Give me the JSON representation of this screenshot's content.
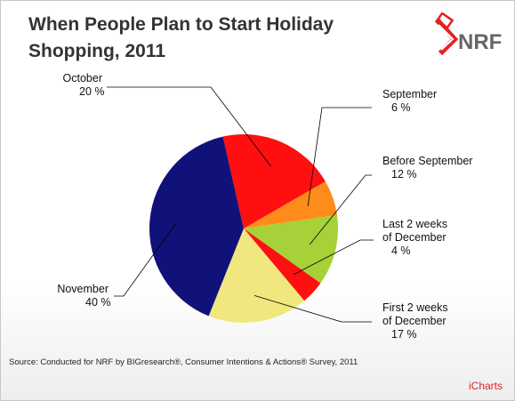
{
  "title": "When People Plan to Start Holiday Shopping, 2011",
  "logo_text": "NRF",
  "source": "Source: Conducted for NRF by BIGresearch®, Consumer Intentions & Actions® Survey, 2011",
  "watermark": "iCharts",
  "chart_data": {
    "type": "pie",
    "title": "When People Plan to Start Holiday Shopping, 2011",
    "unit": "%",
    "slices": [
      {
        "label": "September",
        "value": 6,
        "display": "6 %",
        "color": "#ff8c1a"
      },
      {
        "label": "Before September",
        "value": 12,
        "display": "12 %",
        "color": "#a6d138"
      },
      {
        "label": "Last 2 weeks of December",
        "value": 4,
        "display": "4 %",
        "color": "#ff0f0f"
      },
      {
        "label": "First 2 weeks of December",
        "value": 17,
        "display": "17 %",
        "color": "#f0e87e"
      },
      {
        "label": "November",
        "value": 40,
        "display": "40 %",
        "color": "#11117a"
      },
      {
        "label": "October",
        "value": 20,
        "display": "20 %",
        "color": "#ff0f0f"
      }
    ]
  }
}
